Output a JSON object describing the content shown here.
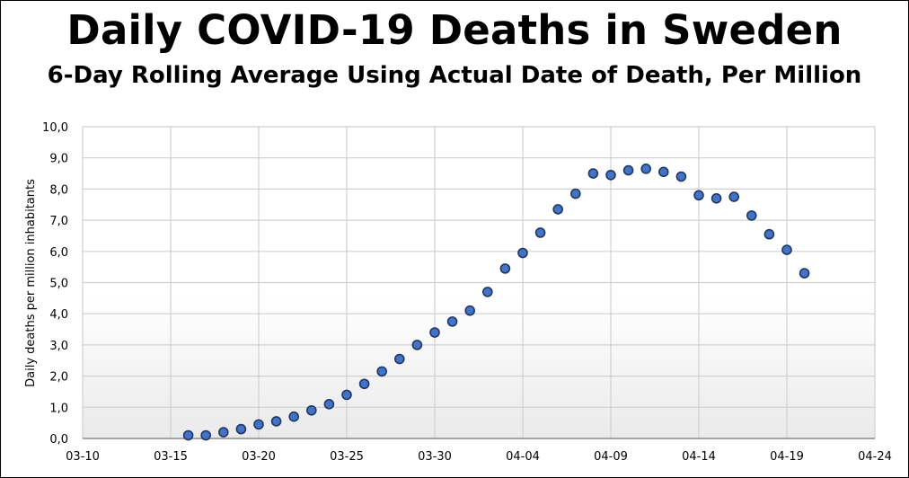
{
  "title": "Daily COVID-19 Deaths in Sweden",
  "subtitle": "6-Day Rolling Average Using Actual Date of Death, Per Million",
  "chart_data": {
    "type": "scatter",
    "title": "Daily COVID-19 Deaths in Sweden",
    "subtitle": "6-Day Rolling Average Using Actual Date of Death, Per Million",
    "xlabel": "",
    "ylabel": "Daily deaths per million inhabitants",
    "x_tick_labels": [
      "03-10",
      "03-15",
      "03-20",
      "03-25",
      "03-30",
      "04-04",
      "04-09",
      "04-14",
      "04-19",
      "04-24"
    ],
    "y_tick_labels": [
      "0,0",
      "1,0",
      "2,0",
      "3,0",
      "4,0",
      "5,0",
      "6,0",
      "7,0",
      "8,0",
      "9,0",
      "10,0"
    ],
    "xlim": [
      "03-10",
      "04-24"
    ],
    "ylim": [
      0,
      10
    ],
    "grid": true,
    "legend": "none",
    "marker_color": "#4472C4",
    "marker_edge_color": "#1F3864",
    "x": [
      "03-16",
      "03-17",
      "03-18",
      "03-19",
      "03-20",
      "03-21",
      "03-22",
      "03-23",
      "03-24",
      "03-25",
      "03-26",
      "03-27",
      "03-28",
      "03-29",
      "03-30",
      "03-31",
      "04-01",
      "04-02",
      "04-03",
      "04-04",
      "04-05",
      "04-06",
      "04-07",
      "04-08",
      "04-09",
      "04-10",
      "04-11",
      "04-12",
      "04-13",
      "04-14",
      "04-15",
      "04-16",
      "04-17",
      "04-18",
      "04-19",
      "04-20"
    ],
    "y": [
      0.1,
      0.1,
      0.2,
      0.3,
      0.45,
      0.55,
      0.7,
      0.9,
      1.1,
      1.4,
      1.75,
      2.15,
      2.55,
      3.0,
      3.4,
      3.75,
      4.1,
      4.7,
      5.45,
      5.95,
      6.6,
      7.35,
      7.85,
      8.5,
      8.45,
      8.6,
      8.65,
      8.55,
      8.4,
      7.8,
      7.7,
      7.75,
      7.15,
      6.55,
      6.05,
      5.3
    ]
  }
}
